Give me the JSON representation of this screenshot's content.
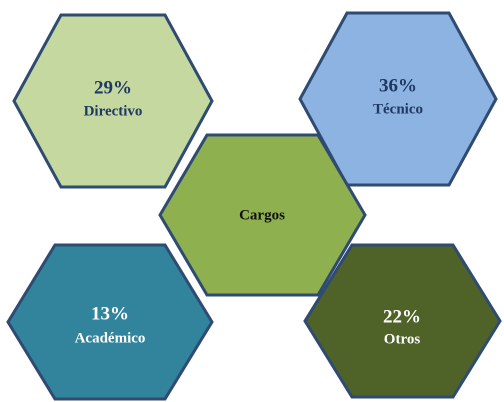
{
  "center": {
    "label": "Cargos"
  },
  "nodes": [
    {
      "value": "29%",
      "label": "Directivo"
    },
    {
      "value": "36%",
      "label": "Técnico"
    },
    {
      "value": "13%",
      "label": "Académico"
    },
    {
      "value": "22%",
      "label": "Otros"
    }
  ]
}
